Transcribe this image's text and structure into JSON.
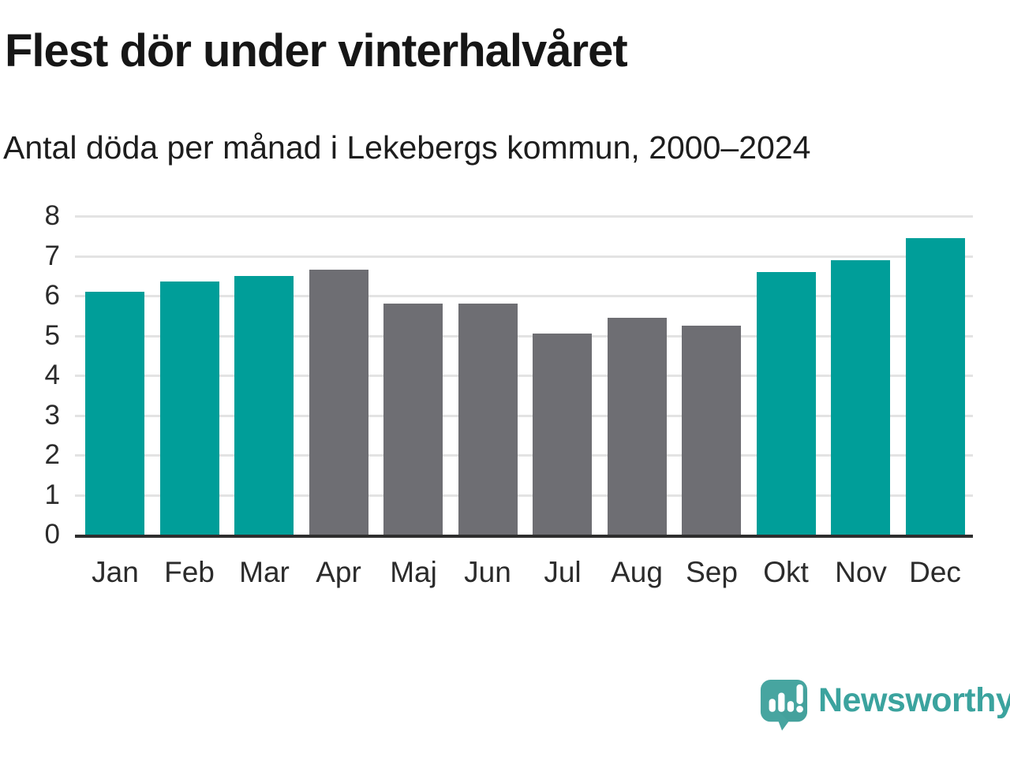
{
  "header": {
    "title": "Flest dör under vinterhalvåret",
    "subtitle": "Antal döda per månad i Lekebergs kommun, 2000–2024"
  },
  "chart_data": {
    "type": "bar",
    "title": "Flest dör under vinterhalvåret",
    "subtitle": "Antal döda per månad i Lekebergs kommun, 2000–2024",
    "categories": [
      "Jan",
      "Feb",
      "Mar",
      "Apr",
      "Maj",
      "Jun",
      "Jul",
      "Aug",
      "Sep",
      "Okt",
      "Nov",
      "Dec"
    ],
    "values": [
      6.1,
      6.35,
      6.5,
      6.65,
      5.8,
      5.8,
      5.05,
      5.45,
      5.25,
      6.6,
      6.9,
      7.45
    ],
    "bar_color_keys": [
      "highlight",
      "highlight",
      "highlight",
      "muted",
      "muted",
      "muted",
      "muted",
      "muted",
      "muted",
      "highlight",
      "highlight",
      "highlight"
    ],
    "highlighted_categories": [
      "Jan",
      "Feb",
      "Mar",
      "Okt",
      "Nov",
      "Dec"
    ],
    "xlabel": "",
    "ylabel": "",
    "ylim": [
      0,
      8
    ],
    "yticks": [
      0,
      1,
      2,
      3,
      4,
      5,
      6,
      7,
      8
    ],
    "grid": true,
    "legend": false
  },
  "colors": {
    "highlight": "#009e99",
    "muted": "#6e6e73",
    "gridline": "#e3e3e3",
    "axis": "#2e2e2e",
    "text": "#161616",
    "brand": "#3ba39e",
    "brand_bubble": "#47a5a0",
    "brand_bubble_shade": "#3e9a95"
  },
  "footer": {
    "brand_name": "Newsworthy"
  }
}
